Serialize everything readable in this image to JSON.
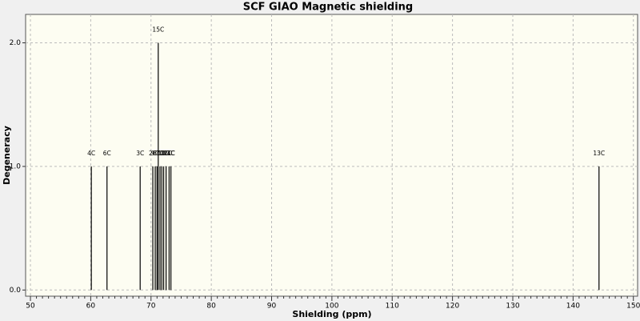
{
  "chart_data": {
    "type": "stick",
    "title": "SCF GIAO Magnetic shielding",
    "x_label": "Shielding (ppm)",
    "y_label": "Degeneracy",
    "x": [
      60.1,
      62.7,
      68.2,
      70.3,
      70.7,
      71.0,
      71.2,
      71.5,
      71.8,
      72.1,
      72.5,
      73.0,
      73.3,
      144.3
    ],
    "values": [
      1,
      1,
      1,
      1,
      1,
      1,
      2,
      1,
      1,
      1,
      1,
      1,
      1,
      1
    ],
    "peak_labels": [
      "4C",
      "6C",
      "3C",
      "2C",
      "9C",
      "8C",
      "15C",
      "7C",
      "10C",
      "11C",
      "12C",
      "14C",
      "1C",
      "13C"
    ],
    "color": "#000000",
    "xlim": [
      49.2,
      150.7
    ],
    "xticks": [
      50,
      60,
      70,
      80,
      90,
      100,
      110,
      120,
      130,
      140,
      150
    ],
    "ylim": [
      -0.05,
      2.23
    ],
    "yticks": [
      {
        "value": 0,
        "label": "0.0"
      },
      {
        "value": 1,
        "label": "1.0"
      },
      {
        "value": 2,
        "label": "2.0"
      }
    ],
    "grid": true
  }
}
